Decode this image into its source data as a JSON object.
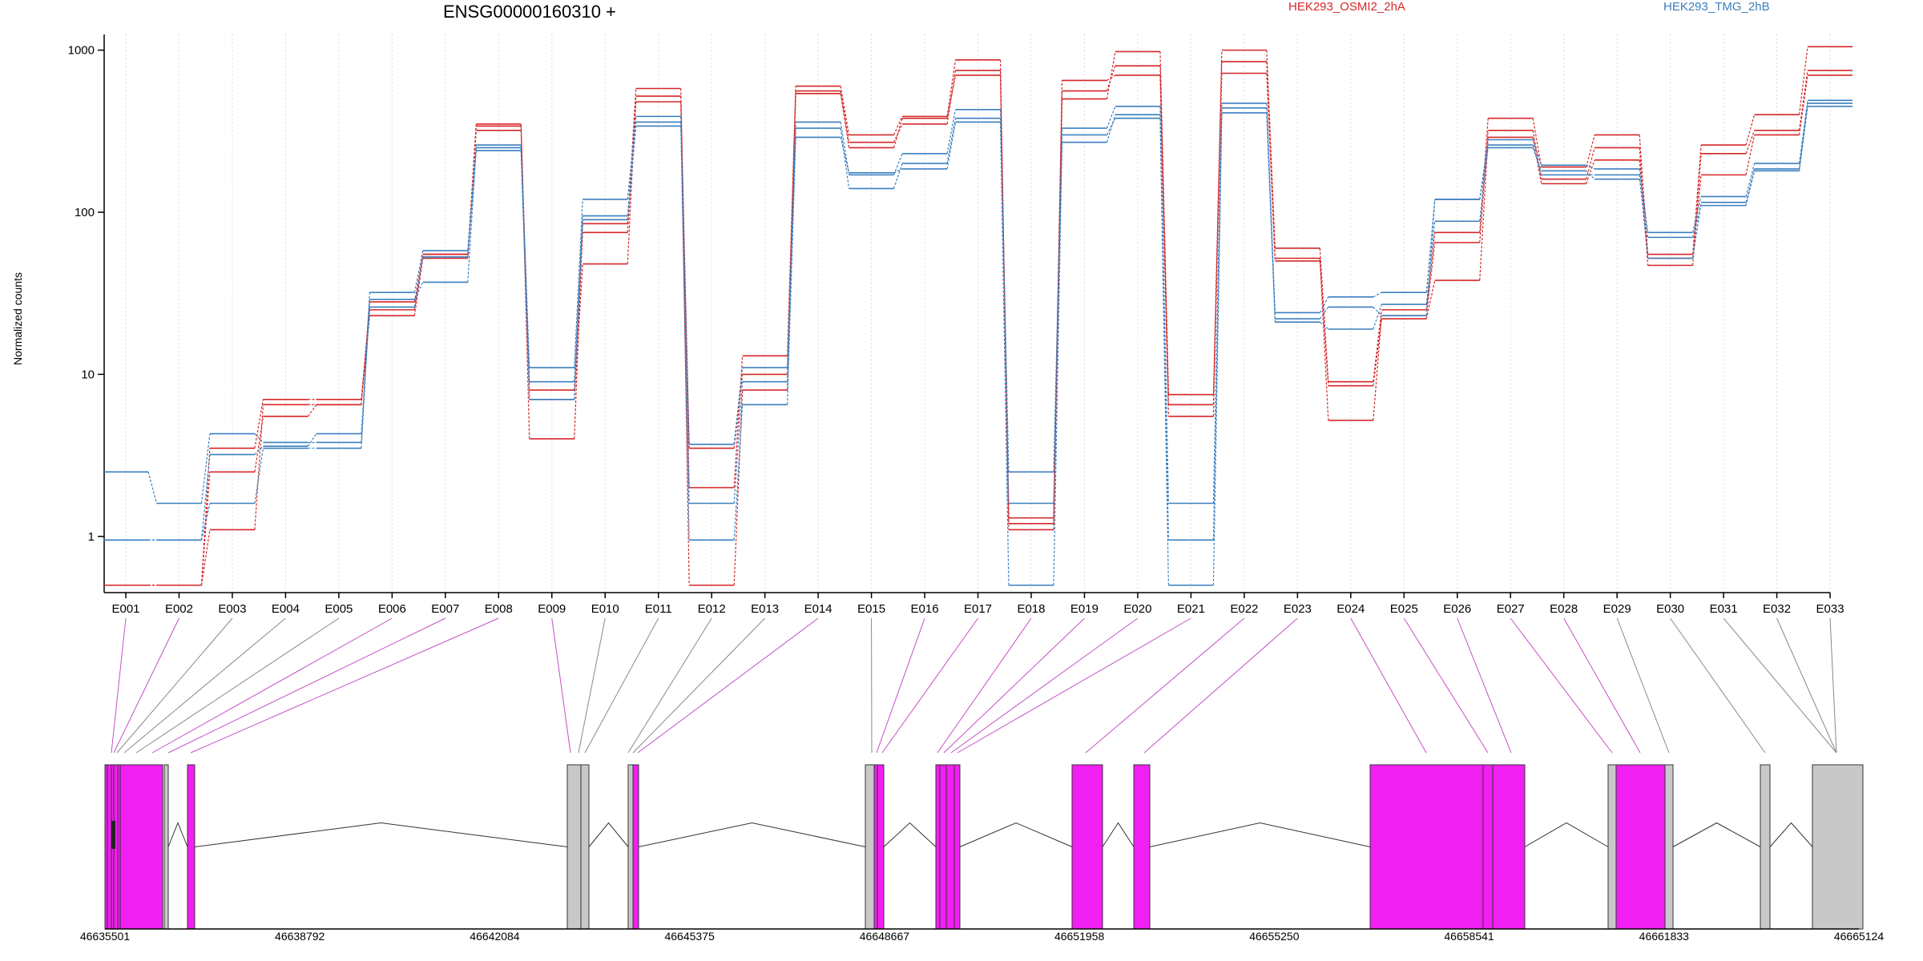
{
  "chart_data": {
    "type": "line",
    "title": "ENSG00000160310 +",
    "ylabel": "Normalized counts",
    "yscale": "log",
    "ylim": [
      0.45,
      1250
    ],
    "yticks": [
      1,
      10,
      100,
      1000
    ],
    "ytick_labels": [
      "1",
      "10",
      "100",
      "1000"
    ],
    "grid": "vertical dotted lines at each exon",
    "legend_placement": "top (inline labels)",
    "colors": {
      "HEK293_OSMI2_2hA": "#d62728",
      "HEK293_TMG_2hB": "#3a7fbf",
      "exon_tested": "#f21ff2",
      "exon_other": "#c8c8c8"
    },
    "exons": [
      "E001",
      "E002",
      "E003",
      "E004",
      "E005",
      "E006",
      "E007",
      "E008",
      "E009",
      "E010",
      "E011",
      "E012",
      "E013",
      "E014",
      "E015",
      "E016",
      "E017",
      "E018",
      "E019",
      "E020",
      "E021",
      "E022",
      "E023",
      "E024",
      "E025",
      "E026",
      "E027",
      "E028",
      "E029",
      "E030",
      "E031",
      "E032",
      "E033"
    ],
    "series": [
      {
        "name": "HEK293_OSMI2_2hA",
        "group": "HEK293_OSMI2_2hA",
        "values": [
          0.5,
          0.5,
          3.5,
          7,
          7,
          25,
          55,
          350,
          4,
          85,
          580,
          2,
          13,
          600,
          300,
          390,
          870,
          1.1,
          500,
          980,
          7.5,
          1000,
          60,
          9,
          25,
          75,
          380,
          190,
          300,
          55,
          260,
          400,
          1050
        ]
      },
      {
        "name": "HEK293_OSMI2_2hA",
        "group": "HEK293_OSMI2_2hA",
        "values": [
          0.5,
          0.5,
          1.1,
          6.5,
          6.5,
          23,
          52,
          340,
          7,
          48,
          520,
          0.5,
          8,
          560,
          270,
          350,
          750,
          1.2,
          560,
          800,
          6.5,
          850,
          52,
          5.2,
          23,
          65,
          320,
          160,
          250,
          47,
          230,
          320,
          750
        ]
      },
      {
        "name": "HEK293_OSMI2_2hA",
        "group": "HEK293_OSMI2_2hA",
        "values": [
          0.5,
          0.5,
          2.5,
          5.5,
          6.5,
          28,
          55,
          320,
          8,
          75,
          480,
          3.5,
          10,
          540,
          250,
          380,
          700,
          1.3,
          650,
          700,
          5.5,
          720,
          50,
          8.5,
          22,
          38,
          290,
          150,
          210,
          52,
          170,
          300,
          700
        ]
      },
      {
        "name": "HEK293_TMG_2hB",
        "group": "HEK293_TMG_2hB",
        "values": [
          2.5,
          1.6,
          4.3,
          3.8,
          3.8,
          32,
          58,
          260,
          11,
          120,
          390,
          3.7,
          11,
          360,
          170,
          230,
          430,
          2.5,
          330,
          450,
          1.6,
          470,
          24,
          30,
          32,
          120,
          280,
          195,
          185,
          75,
          125,
          200,
          490
        ]
      },
      {
        "name": "HEK293_TMG_2hB",
        "group": "HEK293_TMG_2hB",
        "values": [
          0.95,
          0.95,
          1.6,
          3.5,
          3.5,
          29,
          37,
          250,
          9,
          95,
          360,
          1.6,
          9,
          330,
          140,
          200,
          380,
          0.5,
          270,
          400,
          0.95,
          440,
          21,
          19,
          27,
          88,
          260,
          170,
          170,
          52,
          115,
          185,
          470
        ]
      },
      {
        "name": "HEK293_TMG_2hB",
        "group": "HEK293_TMG_2hB",
        "values": [
          0.95,
          0.95,
          3.2,
          3.6,
          4.3,
          26,
          53,
          240,
          7,
          90,
          340,
          0.95,
          6.5,
          290,
          175,
          185,
          360,
          1.6,
          300,
          380,
          0.5,
          410,
          22,
          26,
          23,
          120,
          250,
          180,
          160,
          70,
          110,
          180,
          450
        ]
      }
    ],
    "gene_model": {
      "coordinate_labels": [
        "46635501",
        "46638792",
        "46642084",
        "46645375",
        "46648667",
        "46651958",
        "46655250",
        "46658541",
        "46661833",
        "46665124"
      ],
      "coordinate_range": [
        46635501,
        46665124
      ]
    }
  }
}
